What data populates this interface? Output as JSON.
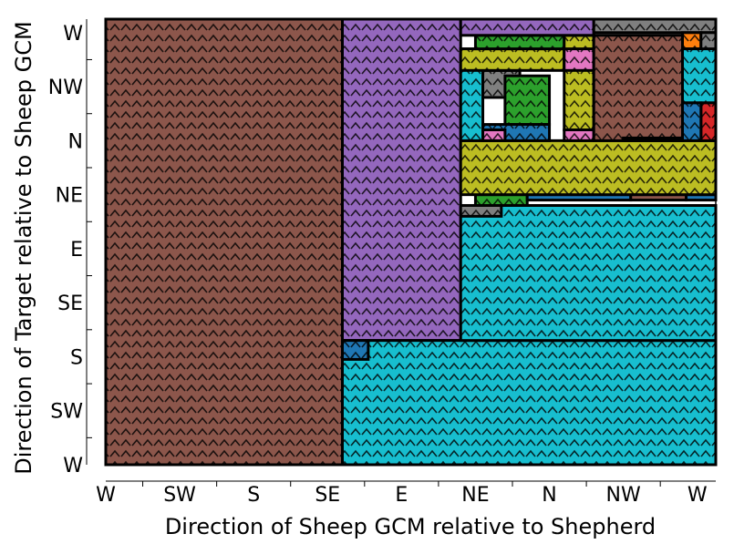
{
  "chart_data": {
    "type": "heatmap",
    "title": "",
    "xlabel": "Direction of Sheep GCM relative to Shepherd",
    "ylabel": "Direction of Target relative to Sheep GCM",
    "x_ticks": [
      "W",
      "SW",
      "S",
      "SE",
      "E",
      "NE",
      "N",
      "NW",
      "W"
    ],
    "y_ticks": [
      "W",
      "NW",
      "N",
      "NE",
      "E",
      "SE",
      "S",
      "SW",
      "W"
    ],
    "xlim": [
      -4,
      4.25
    ],
    "ylim": [
      -4,
      4.25
    ],
    "grid": false,
    "legend": "none",
    "cell_texture": "arrow-chevrons",
    "colors": {
      "brown": "#8c564b",
      "purple": "#9467bd",
      "cyan": "#17becf",
      "olive": "#bcbd22",
      "gray": "#7f7f7f",
      "green": "#2ca02c",
      "pink": "#e377c2",
      "orange": "#ff7f0e",
      "blue": "#1f77b4",
      "red": "#d62728"
    },
    "regions": [
      {
        "color": "brown",
        "x": [
          -4.0,
          -0.8
        ],
        "y": [
          -4.0,
          4.25
        ]
      },
      {
        "color": "purple",
        "x": [
          -0.8,
          0.8
        ],
        "y": [
          -1.7,
          4.25
        ]
      },
      {
        "color": "cyan",
        "x": [
          -0.8,
          4.25
        ],
        "y": [
          -4.0,
          -1.7
        ]
      },
      {
        "color": "blue",
        "x": [
          -0.8,
          -0.45
        ],
        "y": [
          -2.05,
          -1.7
        ]
      },
      {
        "color": "cyan",
        "x": [
          0.8,
          4.25
        ],
        "y": [
          -1.7,
          0.8
        ]
      },
      {
        "color": "gray",
        "x": [
          0.8,
          1.35
        ],
        "y": [
          0.6,
          0.8
        ]
      },
      {
        "color": "green",
        "x": [
          1.0,
          1.7
        ],
        "y": [
          0.8,
          1.0
        ]
      },
      {
        "color": "blue",
        "x": [
          1.7,
          3.1
        ],
        "y": [
          0.9,
          1.0
        ]
      },
      {
        "color": "brown",
        "x": [
          3.1,
          3.85
        ],
        "y": [
          0.9,
          1.0
        ]
      },
      {
        "color": "blue",
        "x": [
          3.85,
          4.25
        ],
        "y": [
          0.9,
          1.0
        ]
      },
      {
        "color": "olive",
        "x": [
          0.8,
          4.25
        ],
        "y": [
          1.0,
          2.0
        ]
      },
      {
        "color": "cyan",
        "x": [
          0.8,
          1.1
        ],
        "y": [
          2.0,
          3.7
        ]
      },
      {
        "color": "gray",
        "x": [
          1.1,
          1.6
        ],
        "y": [
          2.8,
          3.3
        ]
      },
      {
        "color": "green",
        "x": [
          1.4,
          2.0
        ],
        "y": [
          2.3,
          3.2
        ]
      },
      {
        "color": "blue",
        "x": [
          1.1,
          2.0
        ],
        "y": [
          2.0,
          2.3
        ]
      },
      {
        "color": "pink",
        "x": [
          1.1,
          1.4
        ],
        "y": [
          2.0,
          2.2
        ]
      },
      {
        "color": "olive",
        "x": [
          0.8,
          2.2
        ],
        "y": [
          3.3,
          3.7
        ]
      },
      {
        "color": "green",
        "x": [
          1.0,
          2.2
        ],
        "y": [
          3.7,
          3.95
        ]
      },
      {
        "color": "olive",
        "x": [
          2.2,
          2.6
        ],
        "y": [
          2.2,
          3.95
        ]
      },
      {
        "color": "pink",
        "x": [
          2.2,
          2.6
        ],
        "y": [
          3.3,
          3.7
        ]
      },
      {
        "color": "pink",
        "x": [
          2.2,
          2.6
        ],
        "y": [
          2.0,
          2.2
        ]
      },
      {
        "color": "brown",
        "x": [
          2.6,
          3.8
        ],
        "y": [
          2.0,
          3.95
        ]
      },
      {
        "color": "purple",
        "x": [
          0.8,
          2.6
        ],
        "y": [
          3.95,
          4.25
        ]
      },
      {
        "color": "gray",
        "x": [
          2.6,
          4.25
        ],
        "y": [
          4.0,
          4.25
        ]
      },
      {
        "color": "orange",
        "x": [
          3.8,
          4.05
        ],
        "y": [
          3.7,
          4.0
        ]
      },
      {
        "color": "gray",
        "x": [
          4.05,
          4.25
        ],
        "y": [
          3.3,
          4.0
        ]
      },
      {
        "color": "cyan",
        "x": [
          3.8,
          4.25
        ],
        "y": [
          2.7,
          3.7
        ]
      },
      {
        "color": "red",
        "x": [
          4.05,
          4.25
        ],
        "y": [
          2.0,
          2.7
        ]
      },
      {
        "color": "blue",
        "x": [
          3.8,
          4.05
        ],
        "y": [
          2.0,
          2.7
        ]
      },
      {
        "color": "purple",
        "x": [
          3.0,
          3.8
        ],
        "y": [
          2.0,
          2.05
        ]
      }
    ]
  }
}
